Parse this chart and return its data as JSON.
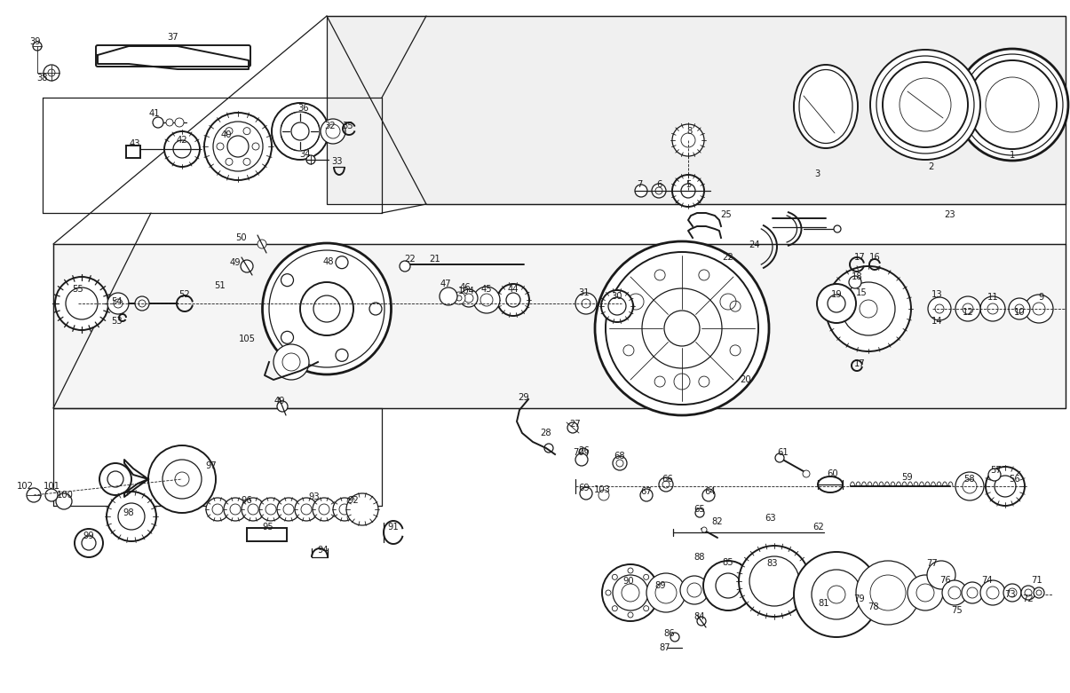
{
  "background_color": "#ffffff",
  "line_color": "#1a1a1a",
  "fig_width": 12.05,
  "fig_height": 7.81,
  "dpi": 100
}
